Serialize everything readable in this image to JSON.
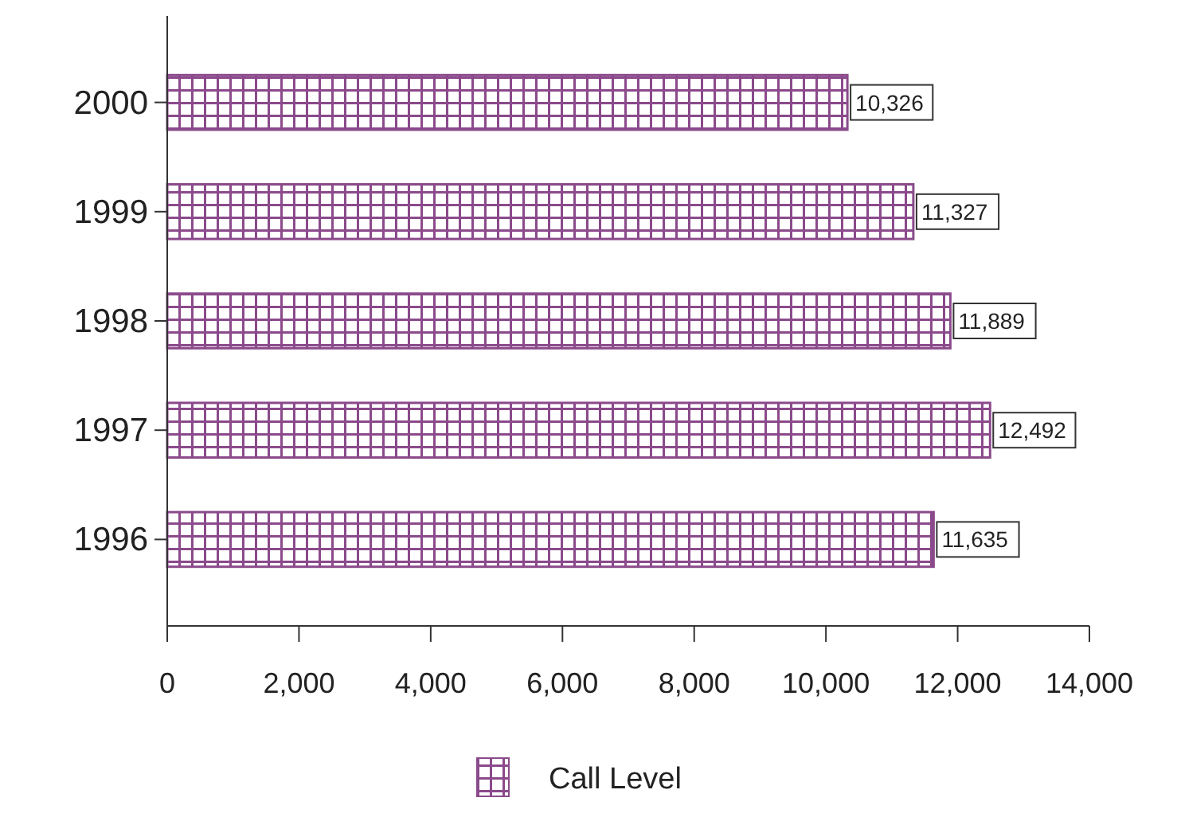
{
  "chart_data": {
    "type": "bar",
    "orientation": "horizontal",
    "categories": [
      "2000",
      "1999",
      "1998",
      "1997",
      "1996"
    ],
    "series": [
      {
        "name": "Call Level",
        "color": "#8b4a8b",
        "values": [
          10326,
          11327,
          11889,
          12492,
          11635
        ],
        "value_labels": [
          "10,326",
          "11,327",
          "11,889",
          "12,492",
          "11,635"
        ]
      }
    ],
    "xlim": [
      0,
      14000
    ],
    "xticks": [
      {
        "value": 0,
        "label": "0"
      },
      {
        "value": 2000,
        "label": "2,000"
      },
      {
        "value": 4000,
        "label": "4,000"
      },
      {
        "value": 6000,
        "label": "6,000"
      },
      {
        "value": 8000,
        "label": "8,000"
      },
      {
        "value": 10000,
        "label": "10,000"
      },
      {
        "value": 12000,
        "label": "12,000"
      },
      {
        "value": 14000,
        "label": "14,000"
      }
    ],
    "legend": "bottom",
    "grid": false
  }
}
